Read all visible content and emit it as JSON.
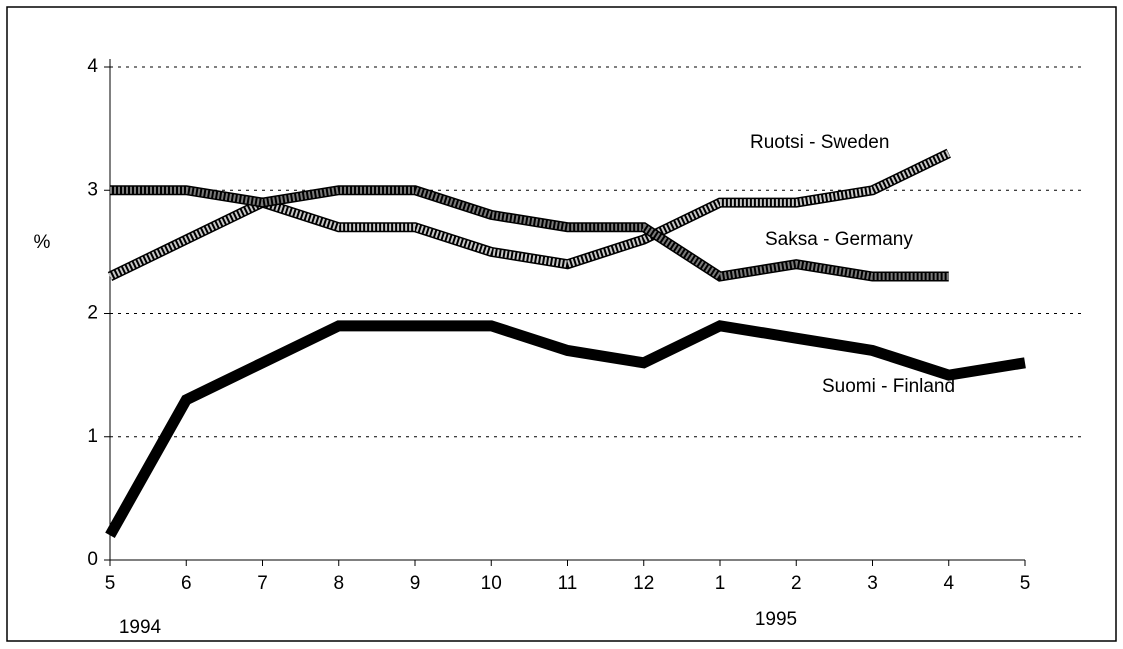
{
  "chart_data": {
    "type": "line",
    "y_label": "%",
    "categories": [
      "5",
      "6",
      "7",
      "8",
      "9",
      "10",
      "11",
      "12",
      "1",
      "2",
      "3",
      "4",
      "5"
    ],
    "annotations": [
      "1994",
      "1995"
    ],
    "series": [
      {
        "name": "Ruotsi - Sweden",
        "color": "#c8c8c8",
        "values": [
          2.3,
          2.6,
          2.9,
          2.7,
          2.7,
          2.5,
          2.4,
          2.6,
          2.9,
          2.9,
          3.0,
          3.3,
          null
        ]
      },
      {
        "name": "Saksa - Germany",
        "color": "#7a7a7a",
        "values": [
          3.0,
          3.0,
          2.9,
          3.0,
          3.0,
          2.8,
          2.7,
          2.7,
          2.3,
          2.4,
          2.3,
          2.3,
          null
        ]
      },
      {
        "name": "Suomi - Finland",
        "color": "#000000",
        "values": [
          0.2,
          1.3,
          1.6,
          1.9,
          1.9,
          1.9,
          1.7,
          1.6,
          1.9,
          1.8,
          1.7,
          1.5,
          1.6
        ]
      }
    ],
    "ylim": [
      0,
      4
    ],
    "yticks": [
      0,
      1,
      2,
      3,
      4
    ],
    "grid": true
  }
}
